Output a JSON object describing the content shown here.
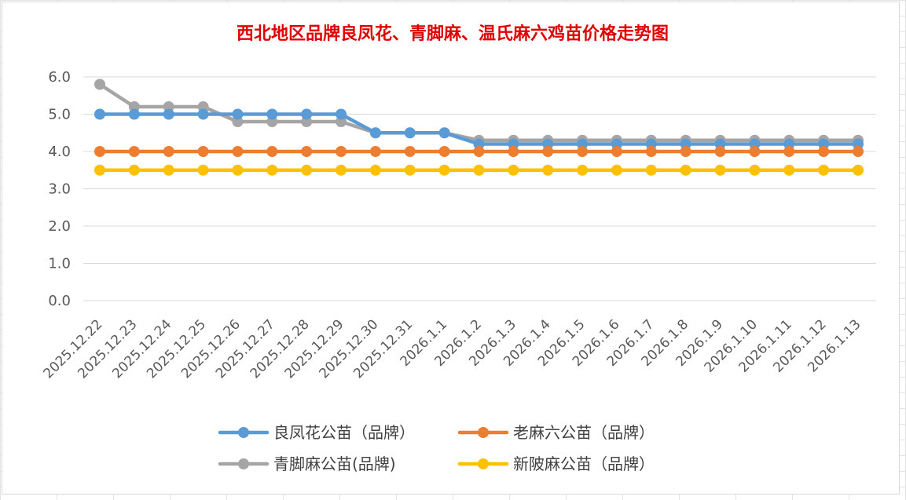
{
  "chart_data": {
    "type": "line",
    "title": "西北地区品牌良凤花、青脚麻、温氏麻六鸡苗价格走势图",
    "xlabel": "",
    "ylabel": "",
    "ylim": [
      0,
      6
    ],
    "yticks": [
      "0.0",
      "1.0",
      "2.0",
      "3.0",
      "4.0",
      "5.0",
      "6.0"
    ],
    "grid": true,
    "legend_position": "bottom",
    "categories": [
      "2025.12.22",
      "2025.12.23",
      "2025.12.24",
      "2025.12.25",
      "2025.12.26",
      "2025.12.27",
      "2025.12.28",
      "2025.12.29",
      "2025.12.30",
      "2025.12.31",
      "2026.1.1",
      "2026.1.2",
      "2026.1.3",
      "2026.1.4",
      "2026.1.5",
      "2026.1.6",
      "2026.1.7",
      "2026.1.8",
      "2026.1.9",
      "2026.1.10",
      "2026.1.11",
      "2026.1.12",
      "2026.1.13"
    ],
    "series": [
      {
        "name": "良凤花公苗（品牌）",
        "color": "#5b9bd5",
        "values": [
          5.0,
          5.0,
          5.0,
          5.0,
          5.0,
          5.0,
          5.0,
          5.0,
          4.5,
          4.5,
          4.5,
          4.2,
          4.2,
          4.2,
          4.2,
          4.2,
          4.2,
          4.2,
          4.2,
          4.2,
          4.2,
          4.2,
          4.2
        ]
      },
      {
        "name": "老麻六公苗（品牌）",
        "color": "#ed7d31",
        "values": [
          4.0,
          4.0,
          4.0,
          4.0,
          4.0,
          4.0,
          4.0,
          4.0,
          4.0,
          4.0,
          4.0,
          4.0,
          4.0,
          4.0,
          4.0,
          4.0,
          4.0,
          4.0,
          4.0,
          4.0,
          4.0,
          4.0,
          4.0
        ]
      },
      {
        "name": "青脚麻公苗(品牌)",
        "color": "#a5a5a5",
        "values": [
          5.8,
          5.2,
          5.2,
          5.2,
          4.8,
          4.8,
          4.8,
          4.8,
          4.5,
          4.5,
          4.5,
          4.3,
          4.3,
          4.3,
          4.3,
          4.3,
          4.3,
          4.3,
          4.3,
          4.3,
          4.3,
          4.3,
          4.3
        ]
      },
      {
        "name": "新陂麻公苗（品牌）",
        "color": "#ffc000",
        "values": [
          3.5,
          3.5,
          3.5,
          3.5,
          3.5,
          3.5,
          3.5,
          3.5,
          3.5,
          3.5,
          3.5,
          3.5,
          3.5,
          3.5,
          3.5,
          3.5,
          3.5,
          3.5,
          3.5,
          3.5,
          3.5,
          3.5,
          3.5
        ]
      }
    ],
    "draw_order": [
      2,
      0,
      1,
      3
    ],
    "legend_order": [
      0,
      1,
      2,
      3
    ]
  }
}
